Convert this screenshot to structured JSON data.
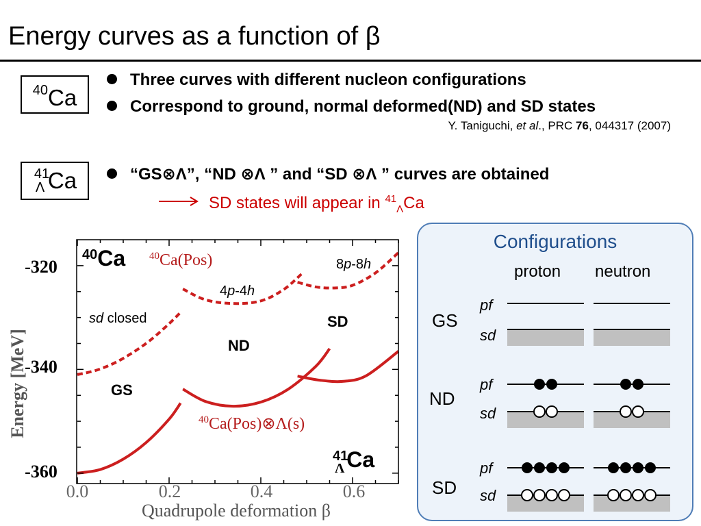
{
  "slide": {
    "title": "Energy curves as a function of β",
    "nucleus_40": {
      "mass": "40",
      "element": "Ca"
    },
    "nucleus_41": {
      "mass": "41",
      "sub": "Λ",
      "element": "Ca"
    },
    "bullets_40": [
      "Three curves with different nucleon configurations",
      "Correspond to ground, normal deformed(ND) and SD states"
    ],
    "reference": {
      "authors": "Y. Taniguchi, ",
      "etal": "et al",
      "journal": "., PRC ",
      "volume": "76",
      "pages": ", 044317 (2007)"
    },
    "bullet_41": "“GS⊗Λ”, “ND ⊗Λ ” and “SD ⊗Λ ” curves  are obtained",
    "note": {
      "prefix": "SD states will appear in ",
      "mass": "41",
      "sub": "Λ",
      "element": "Ca"
    }
  },
  "chart_data": {
    "type": "line",
    "xlabel": "Quadrupole deformation β",
    "ylabel": "Energy [MeV]",
    "xlim": [
      0.0,
      0.7
    ],
    "ylim": [
      -362,
      -315
    ],
    "xticks": [
      "0.0",
      "0.2",
      "0.4",
      "0.6"
    ],
    "yticks": [
      "-320",
      "-340",
      "-360"
    ],
    "line_color": "#cc1f1f",
    "series": [
      {
        "name": "40Ca(Pos)",
        "style": "dashed",
        "segment": "GS",
        "x": [
          0.0,
          0.04,
          0.08,
          0.12,
          0.16,
          0.2,
          0.225
        ],
        "y": [
          -341,
          -340.2,
          -338.8,
          -336.8,
          -334.3,
          -331.2,
          -329
        ]
      },
      {
        "name": "40Ca(Pos)",
        "style": "dashed",
        "segment": "ND",
        "x": [
          0.23,
          0.28,
          0.34,
          0.4,
          0.45,
          0.49
        ],
        "y": [
          -324.5,
          -326.6,
          -327.3,
          -326.8,
          -324.6,
          -321.5
        ]
      },
      {
        "name": "40Ca(Pos)",
        "style": "dashed",
        "segment": "SD",
        "x": [
          0.48,
          0.52,
          0.56,
          0.6,
          0.65,
          0.7
        ],
        "y": [
          -323.2,
          -324.1,
          -324.3,
          -323.8,
          -321.4,
          -317.5
        ]
      },
      {
        "name": "40Ca(Pos)⊗Λ(s)",
        "style": "solid",
        "segment": "GS",
        "x": [
          0.0,
          0.05,
          0.1,
          0.15,
          0.2,
          0.225
        ],
        "y": [
          -360,
          -359.3,
          -357.3,
          -354.1,
          -349.6,
          -346.5
        ]
      },
      {
        "name": "40Ca(Pos)⊗Λ(s)",
        "style": "solid",
        "segment": "ND",
        "x": [
          0.23,
          0.28,
          0.34,
          0.4,
          0.46,
          0.52,
          0.55
        ],
        "y": [
          -343.8,
          -346.2,
          -347.1,
          -346.3,
          -343.8,
          -339.4,
          -336
        ]
      },
      {
        "name": "40Ca(Pos)⊗Λ(s)",
        "style": "solid",
        "segment": "SD",
        "x": [
          0.48,
          0.53,
          0.58,
          0.63,
          0.7
        ],
        "y": [
          -341.3,
          -342.1,
          -342.3,
          -341.2,
          -336.5
        ]
      }
    ],
    "annotations": {
      "top_left_mass": "40",
      "top_left_element": "Ca",
      "series_top_mass": "40",
      "series_top_text": "Ca(Pos)",
      "sd_closed_italic": "sd",
      "sd_closed_text": " closed",
      "p4h4_a": "4",
      "p4h4_b": "p",
      "p4h4_c": "-4",
      "p4h4_d": "h",
      "p8h8_a": "8",
      "p8h8_b": "p",
      "p8h8_c": "-8",
      "p8h8_d": "h",
      "gs": "GS",
      "nd": "ND",
      "sd": "SD",
      "series_bottom_mass": "40",
      "series_bottom_text": "Ca(Pos)⊗Λ(s)",
      "bottom_right_mass": "41",
      "bottom_right_sub": "Λ",
      "bottom_right_element": "Ca"
    }
  },
  "configurations": {
    "title": "Configurations",
    "headers": [
      "proton",
      "neutron"
    ],
    "shells": [
      "pf",
      "sd"
    ],
    "states": [
      {
        "label": "GS",
        "pf_filled": 0,
        "sd_holes": 0
      },
      {
        "label": "ND",
        "pf_filled": 2,
        "sd_holes": 2
      },
      {
        "label": "SD",
        "pf_filled": 4,
        "sd_holes": 4
      }
    ]
  }
}
